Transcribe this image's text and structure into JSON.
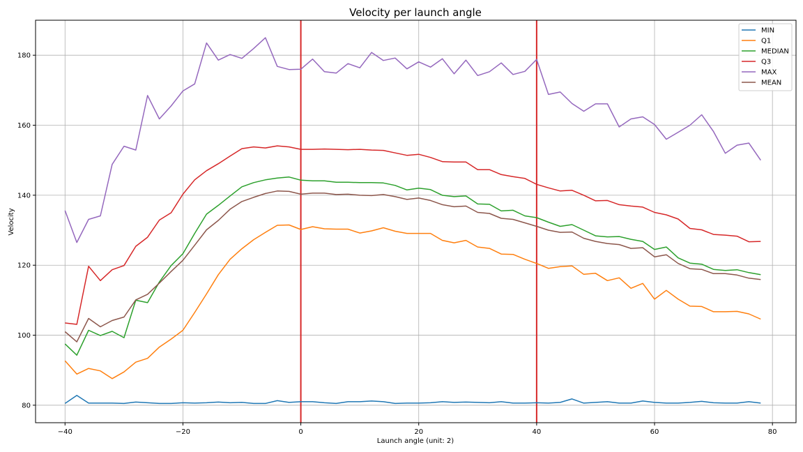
{
  "chart_data": {
    "type": "line",
    "title": "Velocity per launch angle",
    "xlabel": "Launch angle (unit: 2)",
    "ylabel": "Velocity",
    "xlim": [
      -45,
      84
    ],
    "ylim": [
      75,
      190
    ],
    "xticks": [
      -40,
      -20,
      0,
      20,
      40,
      60,
      80
    ],
    "yticks": [
      80,
      100,
      120,
      140,
      160,
      180
    ],
    "grid": true,
    "legend_position": "top-right",
    "vlines": [
      {
        "x": 0,
        "color": "#d62728"
      },
      {
        "x": 40,
        "color": "#d62728"
      }
    ],
    "x": [
      -40,
      -38,
      -36,
      -34,
      -32,
      -30,
      -28,
      -26,
      -24,
      -22,
      -20,
      -18,
      -16,
      -14,
      -12,
      -10,
      -8,
      -6,
      -4,
      -2,
      0,
      2,
      4,
      6,
      8,
      10,
      12,
      14,
      16,
      18,
      20,
      22,
      24,
      26,
      28,
      30,
      32,
      34,
      36,
      38,
      40,
      42,
      44,
      46,
      48,
      50,
      52,
      54,
      56,
      58,
      60,
      62,
      64,
      66,
      68,
      70,
      72,
      74,
      76,
      78
    ],
    "series": [
      {
        "name": "MIN",
        "color": "#1f77b4",
        "values": [
          80.5,
          82.8,
          80.6,
          80.6,
          80.6,
          80.5,
          80.9,
          80.7,
          80.5,
          80.5,
          80.7,
          80.6,
          80.7,
          80.9,
          80.7,
          80.8,
          80.5,
          80.5,
          81.3,
          80.8,
          81.0,
          81.0,
          80.7,
          80.5,
          81.0,
          81.0,
          81.2,
          81.0,
          80.5,
          80.6,
          80.6,
          80.7,
          81.0,
          80.8,
          80.9,
          80.8,
          80.7,
          81.0,
          80.6,
          80.6,
          80.7,
          80.6,
          80.8,
          81.8,
          80.6,
          80.8,
          81.0,
          80.6,
          80.6,
          81.2,
          80.8,
          80.6,
          80.6,
          80.8,
          81.1,
          80.7,
          80.6,
          80.6,
          81.0,
          80.6
        ]
      },
      {
        "name": "Q1",
        "color": "#ff7f0e",
        "values": [
          92.7,
          88.9,
          90.5,
          89.8,
          87.6,
          89.5,
          92.3,
          93.4,
          96.6,
          98.9,
          101.4,
          106.5,
          111.8,
          117.3,
          121.7,
          124.7,
          127.3,
          129.4,
          131.4,
          131.5,
          130.2,
          131.0,
          130.4,
          130.3,
          130.3,
          129.2,
          129.8,
          130.7,
          129.7,
          129.1,
          129.1,
          129.1,
          127.1,
          126.4,
          127.1,
          125.2,
          124.8,
          123.2,
          123.1,
          121.7,
          120.5,
          119.1,
          119.6,
          119.8,
          117.4,
          117.7,
          115.6,
          116.4,
          113.4,
          114.8,
          110.3,
          112.8,
          110.3,
          108.3,
          108.2,
          106.7,
          106.7,
          106.8,
          106.1,
          104.6
        ]
      },
      {
        "name": "MEDIAN",
        "color": "#2ca02c",
        "values": [
          97.5,
          94.3,
          101.4,
          99.9,
          101.1,
          99.3,
          110.0,
          109.3,
          115.2,
          119.9,
          123.3,
          129.1,
          134.6,
          137.1,
          139.8,
          142.4,
          143.6,
          144.4,
          144.9,
          145.2,
          144.3,
          144.1,
          144.1,
          143.7,
          143.7,
          143.6,
          143.6,
          143.5,
          142.8,
          141.5,
          142.0,
          141.6,
          140.0,
          139.6,
          139.8,
          137.5,
          137.4,
          135.5,
          135.7,
          134.1,
          133.6,
          132.3,
          131.1,
          131.6,
          130.0,
          128.4,
          128.1,
          128.2,
          127.4,
          126.8,
          124.5,
          125.2,
          122.1,
          120.6,
          120.3,
          118.8,
          118.5,
          118.7,
          117.9,
          117.3
        ]
      },
      {
        "name": "Q3",
        "color": "#d62728",
        "values": [
          103.5,
          103.1,
          119.7,
          115.6,
          118.7,
          119.9,
          125.4,
          128.0,
          132.9,
          135.0,
          140.3,
          144.4,
          147.0,
          149.0,
          151.2,
          153.3,
          153.8,
          153.5,
          154.1,
          153.8,
          153.1,
          153.1,
          153.2,
          153.1,
          153.0,
          153.1,
          152.9,
          152.8,
          152.1,
          151.4,
          151.7,
          150.8,
          149.6,
          149.5,
          149.5,
          147.3,
          147.3,
          145.9,
          145.3,
          144.8,
          143.1,
          142.1,
          141.2,
          141.4,
          140.0,
          138.4,
          138.5,
          137.3,
          136.9,
          136.6,
          135.1,
          134.4,
          133.2,
          130.5,
          130.1,
          128.8,
          128.6,
          128.3,
          126.7,
          126.8
        ]
      },
      {
        "name": "MAX",
        "color": "#9467bd",
        "values": [
          135.6,
          126.5,
          133.1,
          134.1,
          148.8,
          154.0,
          152.9,
          168.5,
          161.8,
          165.5,
          169.8,
          171.8,
          183.5,
          178.6,
          180.2,
          179.1,
          181.9,
          185.0,
          176.8,
          175.9,
          176.0,
          178.9,
          175.3,
          174.9,
          177.6,
          176.4,
          180.8,
          178.5,
          179.2,
          176.1,
          178.1,
          176.6,
          179.0,
          174.7,
          178.6,
          174.2,
          175.3,
          177.8,
          174.5,
          175.4,
          178.8,
          168.8,
          169.5,
          166.2,
          164.0,
          166.1,
          166.1,
          159.5,
          161.8,
          162.4,
          160.2,
          156.0,
          158.0,
          160.0,
          163.0,
          158.2,
          152.0,
          154.3,
          154.9,
          150.0
        ]
      },
      {
        "name": "MEAN",
        "color": "#8c564b",
        "values": [
          101.0,
          98.1,
          104.8,
          102.4,
          104.2,
          105.2,
          110.1,
          111.7,
          114.9,
          118.2,
          121.4,
          125.7,
          130.1,
          132.8,
          136.0,
          138.2,
          139.4,
          140.5,
          141.2,
          141.1,
          140.3,
          140.6,
          140.6,
          140.2,
          140.3,
          140.0,
          139.9,
          140.2,
          139.6,
          138.8,
          139.2,
          138.5,
          137.3,
          136.7,
          136.9,
          135.1,
          134.8,
          133.4,
          133.1,
          132.1,
          131.1,
          130.0,
          129.4,
          129.5,
          127.7,
          126.8,
          126.2,
          125.9,
          124.8,
          125.0,
          122.4,
          123.0,
          120.5,
          119.0,
          118.8,
          117.6,
          117.6,
          117.2,
          116.3,
          115.9
        ]
      }
    ]
  }
}
